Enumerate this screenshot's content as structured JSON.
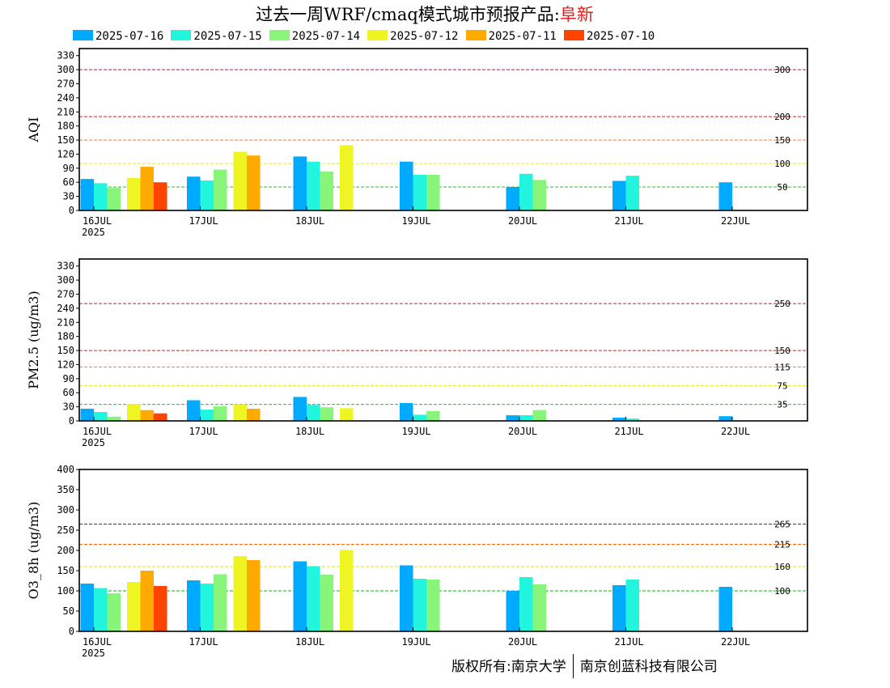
{
  "title": {
    "prefix": "过去一周WRF/cmaq模式城市预报产品:",
    "city": "阜新"
  },
  "legend": [
    {
      "label": "2025-07-16",
      "color": "#00aaff"
    },
    {
      "label": "2025-07-15",
      "color": "#22f5dd"
    },
    {
      "label": "2025-07-14",
      "color": "#88f57a"
    },
    {
      "label": "2025-07-12",
      "color": "#eef522"
    },
    {
      "label": "2025-07-11",
      "color": "#ffaa00"
    },
    {
      "label": "2025-07-10",
      "color": "#ff4400"
    }
  ],
  "footer": {
    "left": "版权所有:南京大学",
    "right": "南京创蓝科技有限公司"
  },
  "chart_data": [
    {
      "type": "bar",
      "ylabel": "AQI",
      "ylim": [
        0,
        345
      ],
      "yticks": [
        0,
        30,
        60,
        90,
        120,
        150,
        180,
        210,
        240,
        270,
        300,
        330
      ],
      "xticks": [
        "16JUL",
        "17JUL",
        "18JUL",
        "19JUL",
        "20JUL",
        "21JUL",
        "22JUL"
      ],
      "xyear": "2025",
      "thresholds": [
        {
          "value": 300,
          "label": "300",
          "color": "#990033"
        },
        {
          "value": 200,
          "label": "200",
          "color": "#cc0000"
        },
        {
          "value": 150,
          "label": "150",
          "color": "#ff6600"
        },
        {
          "value": 100,
          "label": "100",
          "color": "#e6e600"
        },
        {
          "value": 50,
          "label": "50",
          "color": "#00bb00"
        }
      ],
      "series": [
        {
          "name": "2025-07-16",
          "values": [
            {
              "x": 0,
              "y": 67
            },
            {
              "x": 1,
              "y": 72
            },
            {
              "x": 2,
              "y": 115
            },
            {
              "x": 3,
              "y": 104
            },
            {
              "x": 4,
              "y": 50
            },
            {
              "x": 5,
              "y": 63
            },
            {
              "x": 6,
              "y": 60
            }
          ]
        },
        {
          "name": "2025-07-15",
          "values": [
            {
              "x": 0,
              "y": 58
            },
            {
              "x": 1,
              "y": 64
            },
            {
              "x": 2,
              "y": 104
            },
            {
              "x": 3,
              "y": 76
            },
            {
              "x": 4,
              "y": 78
            },
            {
              "x": 5,
              "y": 74
            }
          ]
        },
        {
          "name": "2025-07-14",
          "values": [
            {
              "x": 0,
              "y": 48
            },
            {
              "x": 1,
              "y": 87
            },
            {
              "x": 2,
              "y": 83
            },
            {
              "x": 3,
              "y": 76
            },
            {
              "x": 4,
              "y": 65
            }
          ]
        },
        {
          "name": "2025-07-12",
          "values": [
            {
              "x": 0.5,
              "y": 69
            },
            {
              "x": 1.5,
              "y": 125
            },
            {
              "x": 2.5,
              "y": 139
            }
          ]
        },
        {
          "name": "2025-07-11",
          "values": [
            {
              "x": 0.5,
              "y": 93
            },
            {
              "x": 1.5,
              "y": 117
            }
          ]
        },
        {
          "name": "2025-07-10",
          "values": [
            {
              "x": 0.5,
              "y": 60
            }
          ]
        }
      ]
    },
    {
      "type": "bar",
      "ylabel": "PM2.5 (ug/m3)",
      "ylim": [
        0,
        345
      ],
      "yticks": [
        0,
        30,
        60,
        90,
        120,
        150,
        180,
        210,
        240,
        270,
        300,
        330
      ],
      "xticks": [
        "16JUL",
        "17JUL",
        "18JUL",
        "19JUL",
        "20JUL",
        "21JUL",
        "22JUL"
      ],
      "xyear": "2025",
      "thresholds": [
        {
          "value": 250,
          "label": "250",
          "color": "#990033"
        },
        {
          "value": 150,
          "label": "150",
          "color": "#cc0000"
        },
        {
          "value": 115,
          "label": "115",
          "color": "#ff6600"
        },
        {
          "value": 75,
          "label": "75",
          "color": "#e6e600"
        },
        {
          "value": 35,
          "label": "35",
          "color": "#00bb00"
        }
      ],
      "series": [
        {
          "name": "2025-07-16",
          "values": [
            {
              "x": 0,
              "y": 26
            },
            {
              "x": 1,
              "y": 44
            },
            {
              "x": 2,
              "y": 51
            },
            {
              "x": 3,
              "y": 38
            },
            {
              "x": 4,
              "y": 12
            },
            {
              "x": 5,
              "y": 7
            },
            {
              "x": 6,
              "y": 10
            }
          ]
        },
        {
          "name": "2025-07-15",
          "values": [
            {
              "x": 0,
              "y": 19
            },
            {
              "x": 1,
              "y": 24
            },
            {
              "x": 2,
              "y": 34
            },
            {
              "x": 3,
              "y": 13
            },
            {
              "x": 4,
              "y": 12
            },
            {
              "x": 5,
              "y": 5
            }
          ]
        },
        {
          "name": "2025-07-14",
          "values": [
            {
              "x": 0,
              "y": 9
            },
            {
              "x": 1,
              "y": 31
            },
            {
              "x": 2,
              "y": 29
            },
            {
              "x": 3,
              "y": 21
            },
            {
              "x": 4,
              "y": 23
            }
          ]
        },
        {
          "name": "2025-07-12",
          "values": [
            {
              "x": 0.5,
              "y": 36
            },
            {
              "x": 1.5,
              "y": 35
            },
            {
              "x": 2.5,
              "y": 27
            }
          ]
        },
        {
          "name": "2025-07-11",
          "values": [
            {
              "x": 0.5,
              "y": 23
            },
            {
              "x": 1.5,
              "y": 26
            }
          ]
        },
        {
          "name": "2025-07-10",
          "values": [
            {
              "x": 0.5,
              "y": 16
            }
          ]
        }
      ]
    },
    {
      "type": "bar",
      "ylabel": "O3_8h (ug/m3)",
      "ylim": [
        0,
        400
      ],
      "yticks": [
        0,
        50,
        100,
        150,
        200,
        250,
        300,
        350,
        400
      ],
      "xticks": [
        "16JUL",
        "17JUL",
        "18JUL",
        "19JUL",
        "20JUL",
        "21JUL",
        "22JUL"
      ],
      "xyear": "2025",
      "thresholds": [
        {
          "value": 265,
          "label": "265",
          "color": "#cc0000"
        },
        {
          "value": 215,
          "label": "215",
          "color": "#ff6600"
        },
        {
          "value": 160,
          "label": "160",
          "color": "#e6e600"
        },
        {
          "value": 100,
          "label": "100",
          "color": "#00bb00"
        }
      ],
      "series": [
        {
          "name": "2025-07-16",
          "values": [
            {
              "x": 0,
              "y": 118
            },
            {
              "x": 1,
              "y": 126
            },
            {
              "x": 2,
              "y": 173
            },
            {
              "x": 3,
              "y": 163
            },
            {
              "x": 4,
              "y": 100
            },
            {
              "x": 5,
              "y": 114
            },
            {
              "x": 6,
              "y": 110
            }
          ]
        },
        {
          "name": "2025-07-15",
          "values": [
            {
              "x": 0,
              "y": 107
            },
            {
              "x": 1,
              "y": 118
            },
            {
              "x": 2,
              "y": 161
            },
            {
              "x": 3,
              "y": 130
            },
            {
              "x": 4,
              "y": 134
            },
            {
              "x": 5,
              "y": 128
            }
          ]
        },
        {
          "name": "2025-07-14",
          "values": [
            {
              "x": 0,
              "y": 94
            },
            {
              "x": 1,
              "y": 141
            },
            {
              "x": 2,
              "y": 140
            },
            {
              "x": 3,
              "y": 128
            },
            {
              "x": 4,
              "y": 116
            }
          ]
        },
        {
          "name": "2025-07-12",
          "values": [
            {
              "x": 0.5,
              "y": 122
            },
            {
              "x": 1.5,
              "y": 186
            },
            {
              "x": 2.5,
              "y": 201
            }
          ]
        },
        {
          "name": "2025-07-11",
          "values": [
            {
              "x": 0.5,
              "y": 150
            },
            {
              "x": 1.5,
              "y": 176
            }
          ]
        },
        {
          "name": "2025-07-10",
          "values": [
            {
              "x": 0.5,
              "y": 112
            }
          ]
        }
      ]
    }
  ]
}
